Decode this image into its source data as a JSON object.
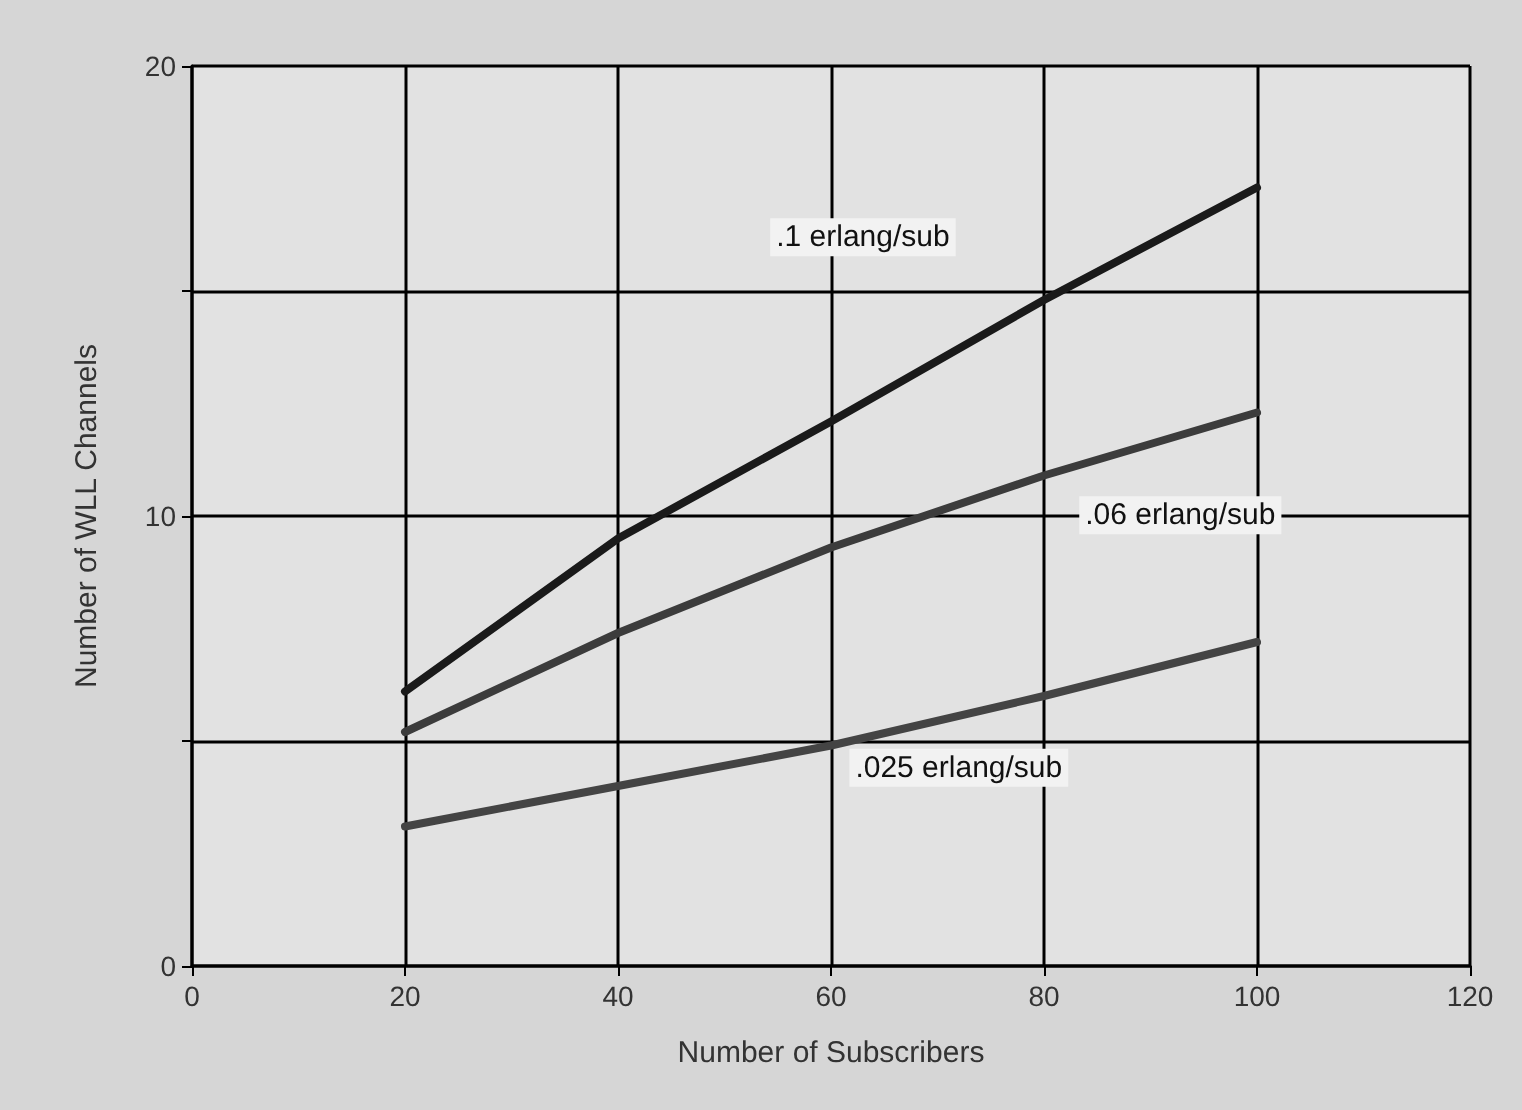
{
  "chart_data": {
    "type": "line",
    "xlabel": "Number of Subscribers",
    "ylabel": "Number of WLL Channels",
    "x": [
      20,
      40,
      60,
      80,
      100
    ],
    "series": [
      {
        "name": ".1 erlang/sub",
        "color": "#1a1a1a",
        "values": [
          6.1,
          9.5,
          12.1,
          14.8,
          17.3
        ]
      },
      {
        "name": ".06 erlang/sub",
        "color": "#3c3c3c",
        "values": [
          5.2,
          7.4,
          9.3,
          10.9,
          12.3
        ]
      },
      {
        "name": ".025 erlang/sub",
        "color": "#444444",
        "values": [
          3.1,
          4.0,
          4.9,
          6.0,
          7.2
        ]
      }
    ],
    "xlim": [
      0,
      120
    ],
    "xticks": [
      0,
      20,
      40,
      60,
      80,
      100,
      120
    ],
    "ylim": [
      0,
      20
    ],
    "yticks": [
      0,
      {
        "value": 5,
        "label": null
      },
      10,
      {
        "value": 15,
        "label": null
      },
      20
    ],
    "grid": true,
    "marker": "none",
    "line_style": "solid"
  }
}
